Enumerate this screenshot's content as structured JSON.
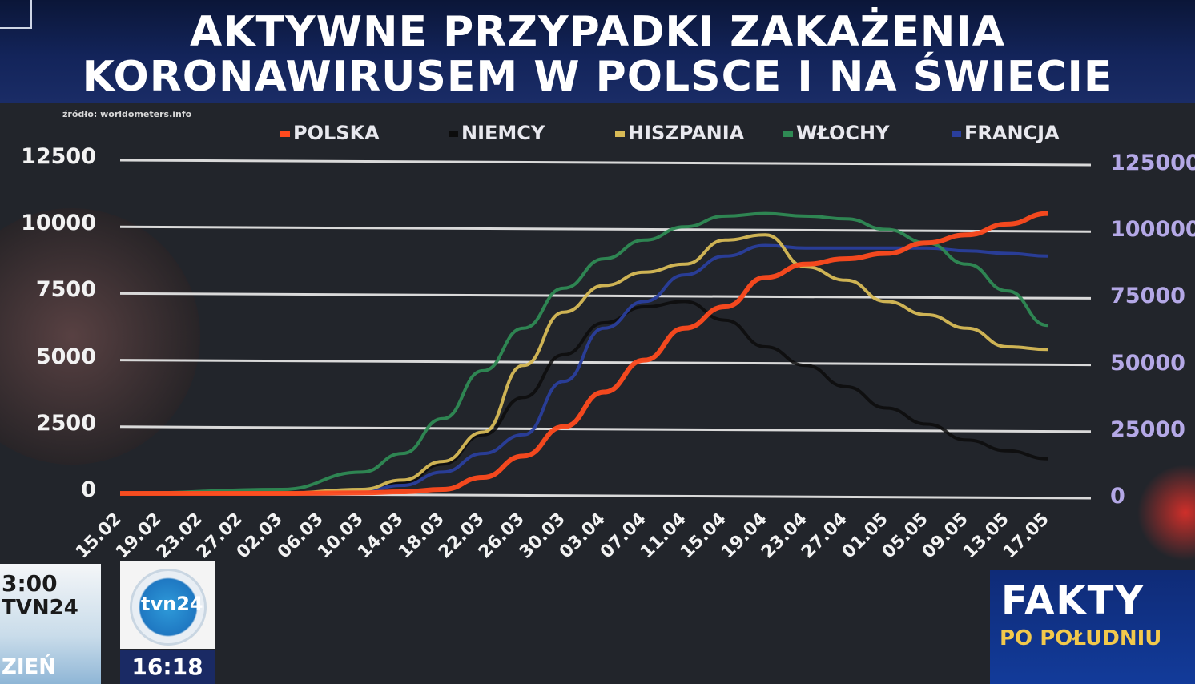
{
  "header": {
    "title_line1": "AKTYWNE PRZYPADKI ZAKAŻENIA",
    "title_line2": "KORONAWIRUSEM W POLSCE I NA ŚWIECIE",
    "source": "źródło: worldometers.info"
  },
  "broadcast": {
    "left_time": "3:00",
    "left_channel": "TVN24",
    "left_day": "ZIEŃ",
    "logo_text": "tvn24",
    "clock": "16:18",
    "show_title": "FAKTY",
    "show_subtitle": "PO POŁUDNIU"
  },
  "colors": {
    "POLSKA": "#ff4a1e",
    "NIEMCY": "#0c0c0c",
    "HISZPANIA": "#d8ba56",
    "WŁOCHY": "#2f8a54",
    "FRANCJA": "#2a3e9c",
    "grid": "#d9d9d9"
  },
  "chart_data": {
    "type": "line",
    "title": "AKTYWNE PRZYPADKI ZAKAŻENIA KORONAWIRUSEM W POLSCE I NA ŚWIECIE",
    "xlabel": "",
    "ylabel": "",
    "legend_position": "top",
    "grid": true,
    "x_ticks": [
      "15.02",
      "19.02",
      "23.02",
      "27.02",
      "02.03",
      "06.03",
      "10.03",
      "14.03",
      "18.03",
      "22.03",
      "26.03",
      "30.03",
      "03.04",
      "07.04",
      "11.04",
      "15.04",
      "19.04",
      "23.04",
      "27.04",
      "01.05",
      "05.05",
      "09.05",
      "13.05",
      "17.05"
    ],
    "y_left": {
      "ticks": [
        0,
        2500,
        5000,
        7500,
        10000,
        12500
      ],
      "ylim": [
        0,
        12500
      ],
      "series": [
        "POLSKA"
      ]
    },
    "y_right": {
      "ticks": [
        0,
        25000,
        50000,
        75000,
        100000,
        125000
      ],
      "tick_labels": [
        "0",
        "25000",
        "50000",
        "75000",
        "100000",
        "125000"
      ],
      "ylim": [
        0,
        125000
      ],
      "series": [
        "NIEMCY",
        "HISZPANIA",
        "WŁOCHY",
        "FRANCJA"
      ]
    },
    "series": [
      {
        "name": "POLSKA",
        "axis": "left",
        "x": [
          "15.02",
          "02.03",
          "10.03",
          "14.03",
          "18.03",
          "22.03",
          "26.03",
          "30.03",
          "03.04",
          "07.04",
          "11.04",
          "15.04",
          "19.04",
          "23.04",
          "27.04",
          "01.05",
          "05.05",
          "09.05",
          "13.05",
          "17.05"
        ],
        "values": [
          0,
          0,
          20,
          60,
          150,
          600,
          1400,
          2500,
          3800,
          5000,
          6200,
          7000,
          8100,
          8600,
          8800,
          9000,
          9400,
          9700,
          10100,
          10500
        ]
      },
      {
        "name": "NIEMCY",
        "axis": "right",
        "x": [
          "15.02",
          "02.03",
          "10.03",
          "14.03",
          "18.03",
          "22.03",
          "26.03",
          "30.03",
          "03.04",
          "07.04",
          "11.04",
          "15.04",
          "19.04",
          "23.04",
          "27.04",
          "01.05",
          "05.05",
          "09.05",
          "13.05",
          "17.05"
        ],
        "values": [
          0,
          200,
          1000,
          4000,
          11000,
          22000,
          36000,
          52000,
          64000,
          70000,
          72000,
          65000,
          55000,
          48000,
          40000,
          32000,
          26000,
          20000,
          16000,
          13000
        ]
      },
      {
        "name": "HISZPANIA",
        "axis": "right",
        "x": [
          "15.02",
          "02.03",
          "10.03",
          "14.03",
          "18.03",
          "22.03",
          "26.03",
          "30.03",
          "03.04",
          "07.04",
          "11.04",
          "15.04",
          "19.04",
          "23.04",
          "27.04",
          "01.05",
          "05.05",
          "09.05",
          "13.05",
          "17.05"
        ],
        "values": [
          0,
          100,
          1500,
          5000,
          12000,
          23000,
          48000,
          68000,
          78000,
          83000,
          86000,
          95000,
          97000,
          85000,
          80000,
          72000,
          67000,
          62000,
          55000,
          54000
        ]
      },
      {
        "name": "WŁOCHY",
        "axis": "right",
        "x": [
          "15.02",
          "02.03",
          "10.03",
          "14.03",
          "18.03",
          "22.03",
          "26.03",
          "30.03",
          "03.04",
          "07.04",
          "11.04",
          "15.04",
          "19.04",
          "23.04",
          "27.04",
          "01.05",
          "05.05",
          "09.05",
          "13.05",
          "17.05"
        ],
        "values": [
          0,
          1500,
          8000,
          15000,
          28000,
          46000,
          62000,
          77000,
          88000,
          95000,
          100000,
          104000,
          105000,
          104000,
          103000,
          99000,
          94000,
          86000,
          76000,
          63000
        ]
      },
      {
        "name": "FRANCJA",
        "axis": "right",
        "x": [
          "15.02",
          "02.03",
          "10.03",
          "14.03",
          "18.03",
          "22.03",
          "26.03",
          "30.03",
          "03.04",
          "07.04",
          "11.04",
          "15.04",
          "19.04",
          "23.04",
          "27.04",
          "01.05",
          "05.05",
          "09.05",
          "13.05",
          "17.05"
        ],
        "values": [
          0,
          100,
          800,
          3000,
          8000,
          15000,
          22000,
          42000,
          62000,
          72000,
          82000,
          89000,
          93000,
          92000,
          92000,
          92000,
          92000,
          91000,
          90000,
          89000
        ]
      }
    ]
  }
}
